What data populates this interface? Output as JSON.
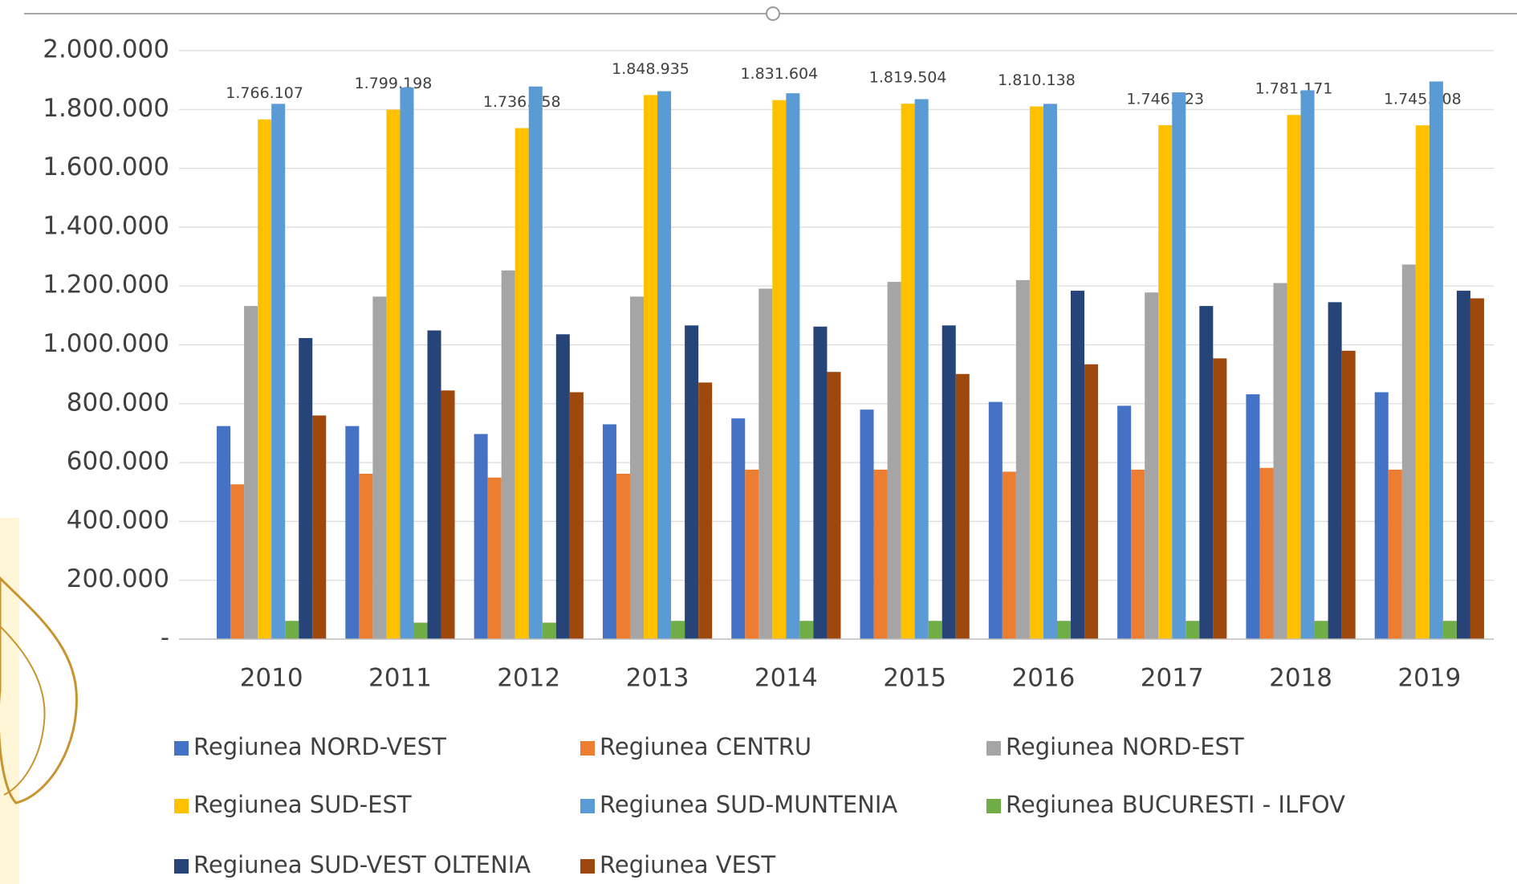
{
  "chart_data": {
    "type": "bar",
    "categories": [
      "2010",
      "2011",
      "2012",
      "2013",
      "2014",
      "2015",
      "2016",
      "2017",
      "2018",
      "2019"
    ],
    "series": [
      {
        "name": "Regiunea NORD-VEST",
        "color": "#4472c4",
        "values": [
          724000,
          724000,
          697000,
          730000,
          750000,
          780000,
          806000,
          793000,
          832000,
          839000
        ]
      },
      {
        "name": "Regiunea CENTRU",
        "color": "#ed7d31",
        "values": [
          526000,
          562000,
          549000,
          562000,
          576000,
          576000,
          569000,
          576000,
          582000,
          576000
        ]
      },
      {
        "name": "Regiunea NORD-EST",
        "color": "#a5a5a5",
        "values": [
          1132000,
          1164000,
          1253000,
          1164000,
          1191000,
          1214000,
          1220000,
          1178000,
          1210000,
          1273000
        ]
      },
      {
        "name": "Regiunea SUD-EST",
        "color": "#ffc000",
        "values": [
          1766107,
          1799198,
          1736558,
          1848935,
          1831604,
          1819504,
          1810138,
          1746723,
          1781171,
          1745808
        ],
        "value_labels": [
          "1.766.107",
          "1.799.198",
          "1.736.558",
          "1.848.935",
          "1.831.604",
          "1.819.504",
          "1.810.138",
          "1.746.723",
          "1.781.171",
          "1.745.808"
        ]
      },
      {
        "name": "Regiunea SUD-MUNTENIA",
        "color": "#5b9bd5",
        "values": [
          1819000,
          1875000,
          1878000,
          1862000,
          1855000,
          1835000,
          1819000,
          1858000,
          1865000,
          1895000
        ]
      },
      {
        "name": "Regiunea BUCURESTI - ILFOV",
        "color": "#70ad47",
        "values": [
          62000,
          56000,
          56000,
          62000,
          62000,
          62000,
          62000,
          62000,
          62000,
          62000
        ]
      },
      {
        "name": "Regiunea SUD-VEST OLTENIA",
        "color": "#264478",
        "values": [
          1023000,
          1049000,
          1036000,
          1066000,
          1062000,
          1066000,
          1184000,
          1132000,
          1145000,
          1184000
        ]
      },
      {
        "name": "Regiunea VEST",
        "color": "#9e480e",
        "values": [
          760000,
          845000,
          839000,
          872000,
          908000,
          901000,
          934000,
          954000,
          980000,
          1158000
        ]
      }
    ],
    "ylim": [
      0,
      2000000
    ],
    "yticks": [
      {
        "value": 0,
        "label": "-"
      },
      {
        "value": 200000,
        "label": "200.000"
      },
      {
        "value": 400000,
        "label": "400.000"
      },
      {
        "value": 600000,
        "label": "600.000"
      },
      {
        "value": 800000,
        "label": "800.000"
      },
      {
        "value": 1000000,
        "label": "1.000.000"
      },
      {
        "value": 1200000,
        "label": "1.200.000"
      },
      {
        "value": 1400000,
        "label": "1.400.000"
      },
      {
        "value": 1600000,
        "label": "1.600.000"
      },
      {
        "value": 1800000,
        "label": "1.800.000"
      },
      {
        "value": 2000000,
        "label": "2.000.000"
      }
    ],
    "grid": true
  }
}
